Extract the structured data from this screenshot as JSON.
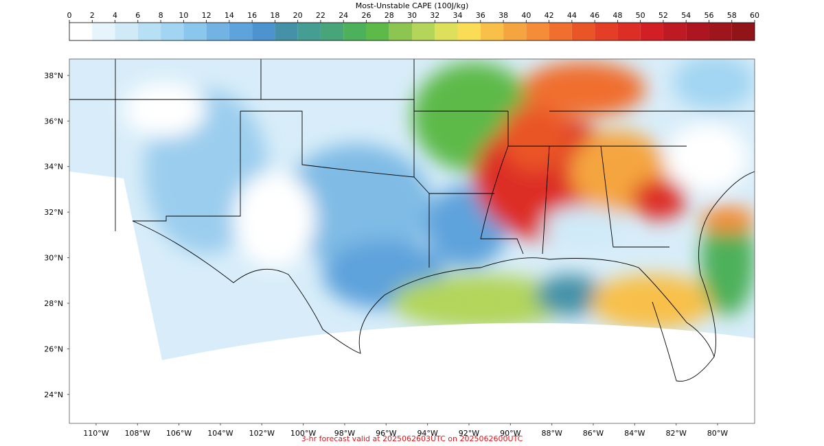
{
  "colorbar": {
    "label": "Most-Unstable CAPE (100J/kg)",
    "range": [
      0,
      60
    ],
    "ticks": [
      0,
      2,
      4,
      6,
      8,
      10,
      12,
      14,
      16,
      18,
      20,
      22,
      24,
      26,
      28,
      30,
      32,
      34,
      36,
      38,
      40,
      42,
      44,
      46,
      48,
      50,
      52,
      54,
      56,
      58,
      60
    ],
    "colors": [
      "#ffffff",
      "#e6f4fc",
      "#d0eaf8",
      "#b8e0f5",
      "#a2d5f2",
      "#8bc6ec",
      "#72b3e3",
      "#5fa3dc",
      "#4d93d0",
      "#4592a8",
      "#459e91",
      "#48a57a",
      "#4db05a",
      "#5dba48",
      "#8cc54f",
      "#b2d55a",
      "#dde05a",
      "#fadc55",
      "#f8c048",
      "#f5a540",
      "#f48c38",
      "#f06e2e",
      "#ea5528",
      "#e43e26",
      "#dd2e26",
      "#d21f26",
      "#be1a24",
      "#ad1620",
      "#9e161c",
      "#911419"
    ]
  },
  "map": {
    "lon_range": [
      -111.29,
      -78.21
    ],
    "lat_range": [
      22.73,
      38.72
    ],
    "lon_ticks": [
      {
        "value": -110,
        "label": "110°W"
      },
      {
        "value": -108,
        "label": "108°W"
      },
      {
        "value": -106,
        "label": "106°W"
      },
      {
        "value": -104,
        "label": "104°W"
      },
      {
        "value": -102,
        "label": "102°W"
      },
      {
        "value": -100,
        "label": "100°W"
      },
      {
        "value": -98,
        "label": "98°W"
      },
      {
        "value": -96,
        "label": "96°W"
      },
      {
        "value": -94,
        "label": "94°W"
      },
      {
        "value": -92,
        "label": "92°W"
      },
      {
        "value": -90,
        "label": "90°W"
      },
      {
        "value": -88,
        "label": "88°W"
      },
      {
        "value": -86,
        "label": "86°W"
      },
      {
        "value": -84,
        "label": "84°W"
      },
      {
        "value": -82,
        "label": "82°W"
      },
      {
        "value": -80,
        "label": "80°W"
      }
    ],
    "lat_ticks": [
      {
        "value": 24,
        "label": "24°N"
      },
      {
        "value": 26,
        "label": "26°N"
      },
      {
        "value": 28,
        "label": "28°N"
      },
      {
        "value": 30,
        "label": "30°N"
      },
      {
        "value": 32,
        "label": "32°N"
      },
      {
        "value": 34,
        "label": "34°N"
      },
      {
        "value": 36,
        "label": "36°N"
      },
      {
        "value": 38,
        "label": "38°N"
      }
    ]
  },
  "footer": "3-hr forecast valid at 2025062603UTC on 2025062600UTC"
}
